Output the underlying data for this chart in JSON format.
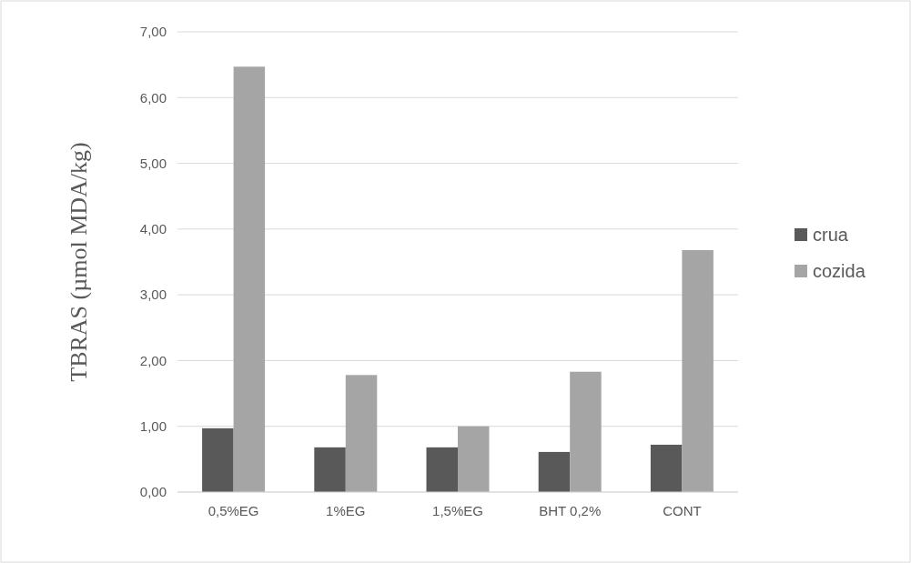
{
  "chart_data": {
    "type": "bar",
    "ylabel": "TBRAS (µmol MDA/kg)",
    "categories": [
      "0,5%EG",
      "1%EG",
      "1,5%EG",
      "BHT 0,2%",
      "CONT"
    ],
    "series": [
      {
        "name": "crua",
        "color": "#595959",
        "values": [
          0.97,
          0.68,
          0.68,
          0.61,
          0.72
        ]
      },
      {
        "name": "cozida",
        "color": "#a5a5a5",
        "values": [
          6.47,
          1.78,
          1.0,
          1.83,
          3.68
        ]
      }
    ],
    "ylim": [
      0,
      7
    ],
    "yticks": [
      {
        "value": 0,
        "label": "0,00"
      },
      {
        "value": 1,
        "label": "1,00"
      },
      {
        "value": 2,
        "label": "2,00"
      },
      {
        "value": 3,
        "label": "3,00"
      },
      {
        "value": 4,
        "label": "4,00"
      },
      {
        "value": 5,
        "label": "5,00"
      },
      {
        "value": 6,
        "label": "6,00"
      },
      {
        "value": 7,
        "label": "7,00"
      }
    ],
    "grid": "y",
    "legend": "right"
  }
}
